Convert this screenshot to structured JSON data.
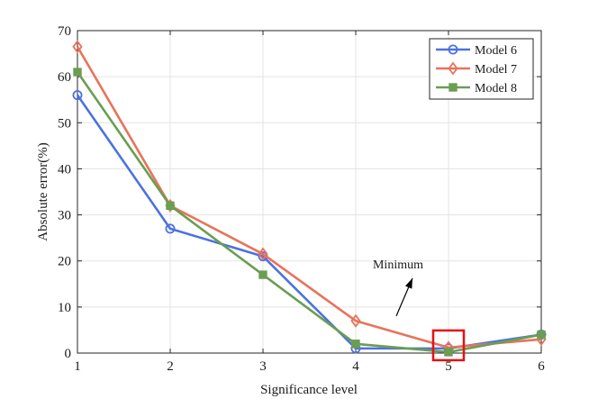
{
  "chart_data": {
    "type": "line",
    "title": "",
    "xlabel": "Significance level",
    "ylabel": "Absolute error(%)",
    "x": [
      1,
      2,
      3,
      4,
      5,
      6
    ],
    "xlim": [
      1,
      6
    ],
    "ylim": [
      0,
      70
    ],
    "xticks": [
      "1",
      "2",
      "3",
      "4",
      "5",
      "6"
    ],
    "yticks": [
      "0",
      "10",
      "20",
      "30",
      "40",
      "50",
      "60",
      "70"
    ],
    "grid": true,
    "legend_position": "top-right",
    "series": [
      {
        "name": "Model 6",
        "values": [
          56,
          27,
          21,
          1,
          1,
          4
        ],
        "color": "#4c72e0",
        "marker": "circle"
      },
      {
        "name": "Model 7",
        "values": [
          66.5,
          32,
          21.5,
          7,
          1.2,
          3
        ],
        "color": "#e8735a",
        "marker": "diamond"
      },
      {
        "name": "Model 8",
        "values": [
          61,
          32,
          17,
          2,
          0.2,
          4
        ],
        "color": "#6a9e52",
        "marker": "square"
      }
    ],
    "annotation": {
      "text": "Minimum",
      "x": 5,
      "y": 0.8,
      "box_color": "#e81010"
    }
  }
}
